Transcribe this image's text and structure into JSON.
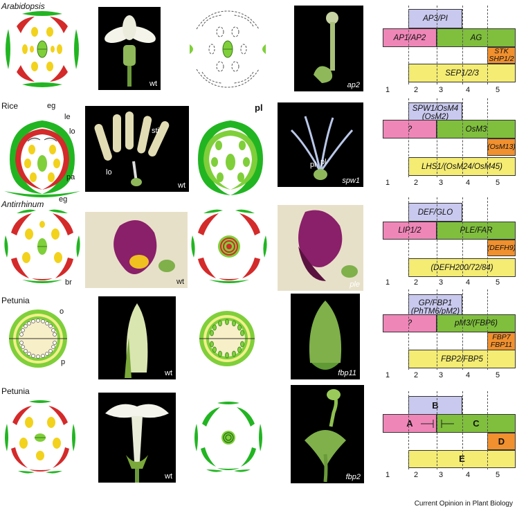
{
  "rows": [
    {
      "species": "Arabidopsis",
      "wt_label": "wt",
      "mutant_label": "ap2",
      "genes": {
        "b": "AP3/PI",
        "a": "AP1/AP2",
        "c": "AG",
        "d": "STK\nSHP1/2",
        "e": "SEP1/2/3"
      },
      "whorls": [
        "1",
        "2",
        "3",
        "4",
        "5"
      ]
    },
    {
      "species": "Rice",
      "wt_label": "wt",
      "mutant_label": "spw1",
      "annotations": {
        "eg_top": "eg",
        "le": "le",
        "lo": "lo",
        "pa": "pa",
        "eg_bottom": "eg",
        "pl": "pl",
        "sti": "sti",
        "lo_photo": "lo",
        "pl_photo1": "pl",
        "pl_photo2": "pl"
      },
      "genes": {
        "b": "SPW1/OsM4\n(OsM2)",
        "a": "?",
        "c": "OsM3",
        "d": "(OsM13)",
        "e": "LHS1/(OsM24/OsM45)"
      },
      "whorls": [
        "1",
        "2",
        "3",
        "4",
        "5"
      ]
    },
    {
      "species": "Antirrhinum",
      "wt_label": "wt",
      "mutant_label": "ple",
      "annotations": {
        "br": "br"
      },
      "genes": {
        "b": "DEF/GLO",
        "a": "LIP1/2",
        "c": "PLE/FAR",
        "d": "(DEFH9)",
        "e": "(DEFH200/72/84)"
      },
      "whorls": [
        "1",
        "2",
        "3",
        "4",
        "5"
      ]
    },
    {
      "species": "Petunia",
      "wt_label": "wt",
      "mutant_label": "fbp11",
      "annotations": {
        "o": "o",
        "p": "p"
      },
      "genes": {
        "b": "GP/FBP1\n(PhTM6/pM2)",
        "a": "?",
        "c": "pM3/(FBP6)",
        "d": "FBP7\nFBP11",
        "e": "FBP2/FBP5"
      },
      "whorls": [
        "1",
        "2",
        "3",
        "4",
        "5"
      ]
    },
    {
      "species": "Petunia",
      "wt_label": "wt",
      "mutant_label": "fbp2",
      "genes": {
        "b": "B",
        "a": "A",
        "c": "C",
        "d": "D",
        "e": "E"
      },
      "whorls": [
        "1",
        "2",
        "3",
        "4",
        "5"
      ]
    }
  ],
  "colors": {
    "b": "#c9c9ef",
    "a": "#ef86b8",
    "c": "#7fbf3d",
    "d": "#f0902e",
    "e": "#f4ec73",
    "sepal": "#22b522",
    "petal": "#d42a2a",
    "stamen": "#f2d21c",
    "carpel": "#7fcf3a"
  },
  "credit": "Current Opinion in Plant Biology"
}
